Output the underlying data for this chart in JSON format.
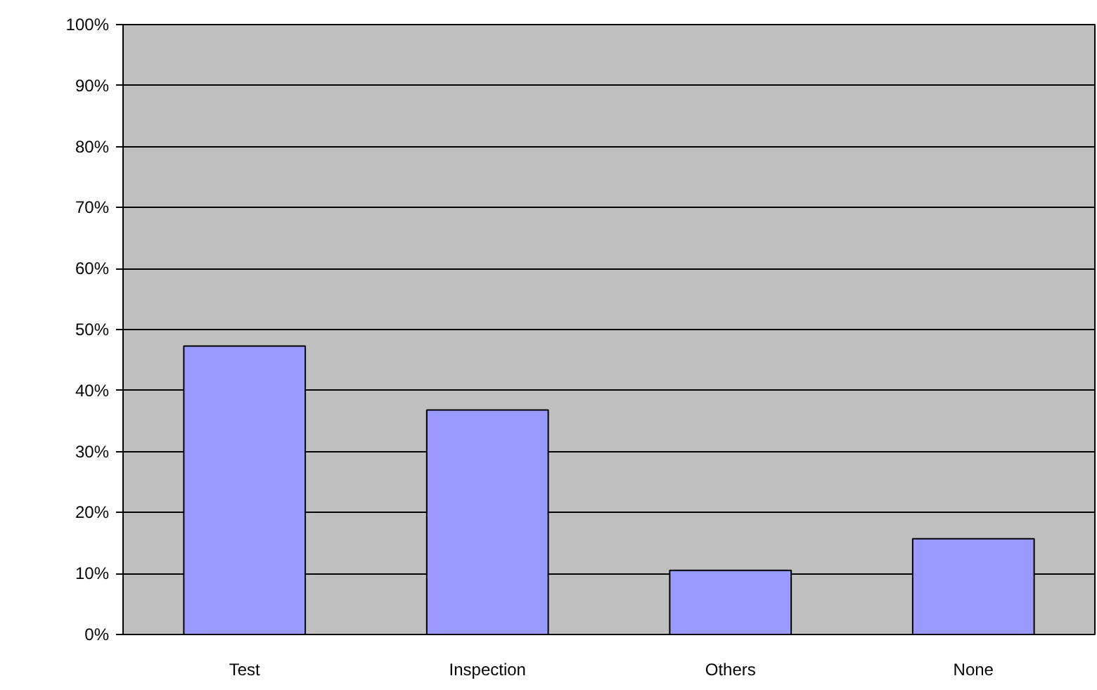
{
  "chart_data": {
    "type": "bar",
    "categories": [
      "Test",
      "Inspection",
      "Others",
      "None"
    ],
    "values": [
      47.3,
      36.8,
      10.5,
      15.7
    ],
    "color": "#9999ff",
    "ylim": [
      0,
      100
    ],
    "yticks": [
      {
        "value": 0,
        "label": "0%"
      },
      {
        "value": 10,
        "label": "10%"
      },
      {
        "value": 20,
        "label": "20%"
      },
      {
        "value": 30,
        "label": "30%"
      },
      {
        "value": 40,
        "label": "40%"
      },
      {
        "value": 50,
        "label": "50%"
      },
      {
        "value": 60,
        "label": "60%"
      },
      {
        "value": 70,
        "label": "70%"
      },
      {
        "value": 80,
        "label": "80%"
      },
      {
        "value": 90,
        "label": "90%"
      },
      {
        "value": 100,
        "label": "100%"
      }
    ],
    "grid": "y"
  }
}
